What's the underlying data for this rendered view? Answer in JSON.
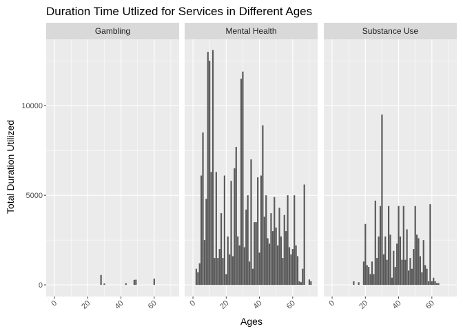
{
  "chart_data": {
    "type": "bar",
    "title": "Duration Time Utlized for Services in Different Ages",
    "xlabel": "Ages",
    "ylabel": "Total Duration Utilized",
    "xlim": [
      -5,
      75
    ],
    "ylim": [
      -650,
      13700
    ],
    "x_ticks": [
      0,
      20,
      40,
      60
    ],
    "y_ticks": [
      0,
      5000,
      10000
    ],
    "y_tick_labels": [
      "0",
      "5000",
      "10000"
    ],
    "grid": true,
    "legend": "none",
    "colors": {
      "bar": "#595959",
      "panel": "#ebebeb",
      "strip": "#d9d9d9",
      "grid": "#ffffff"
    },
    "facets": [
      {
        "name": "Gambling",
        "x": [
          28,
          30,
          43,
          48,
          49,
          60
        ],
        "values": [
          550,
          80,
          90,
          280,
          290,
          350
        ]
      },
      {
        "name": "Mental Health",
        "x": [
          2,
          3,
          4,
          5,
          6,
          7,
          8,
          9,
          10,
          11,
          12,
          13,
          14,
          15,
          16,
          17,
          18,
          19,
          20,
          21,
          22,
          23,
          24,
          25,
          26,
          27,
          28,
          29,
          30,
          31,
          32,
          33,
          34,
          35,
          36,
          37,
          38,
          39,
          40,
          41,
          42,
          43,
          44,
          45,
          46,
          47,
          48,
          49,
          50,
          51,
          52,
          53,
          54,
          55,
          56,
          57,
          58,
          59,
          60,
          61,
          62,
          63,
          64,
          65,
          66,
          67,
          70,
          71
        ],
        "values": [
          900,
          700,
          1200,
          6100,
          8500,
          2500,
          4800,
          13000,
          12500,
          6300,
          13100,
          1500,
          6300,
          1500,
          2000,
          4000,
          1500,
          6100,
          600,
          2700,
          1700,
          5800,
          1600,
          6500,
          7700,
          2700,
          2200,
          11500,
          11900,
          2100,
          4200,
          5000,
          1300,
          7000,
          900,
          3500,
          3500,
          6000,
          1800,
          6100,
          8900,
          3800,
          5000,
          2600,
          2300,
          4000,
          3000,
          4900,
          3200,
          2200,
          4300,
          2700,
          1500,
          3900,
          3000,
          5000,
          2100,
          1700,
          2000,
          5000,
          2200,
          1600,
          200,
          150,
          900,
          5600,
          300,
          200
        ]
      },
      {
        "name": "Substance Use",
        "x": [
          13,
          16,
          19,
          20,
          21,
          22,
          23,
          24,
          25,
          26,
          27,
          28,
          29,
          30,
          31,
          32,
          33,
          34,
          35,
          36,
          37,
          38,
          39,
          40,
          41,
          42,
          43,
          44,
          45,
          46,
          47,
          48,
          49,
          50,
          51,
          52,
          53,
          54,
          55,
          56,
          57,
          58,
          59,
          60,
          61,
          62,
          63,
          64
        ],
        "values": [
          200,
          150,
          1300,
          3400,
          1100,
          1000,
          600,
          1300,
          600,
          4700,
          1500,
          2700,
          4400,
          9500,
          1700,
          2700,
          1400,
          4400,
          2800,
          400,
          1900,
          1000,
          2300,
          4400,
          2700,
          1400,
          4400,
          1400,
          3100,
          800,
          1500,
          900,
          2000,
          4400,
          2800,
          2600,
          1600,
          700,
          2500,
          1100,
          900,
          200,
          4500,
          200,
          400,
          200,
          100,
          100
        ]
      }
    ]
  }
}
